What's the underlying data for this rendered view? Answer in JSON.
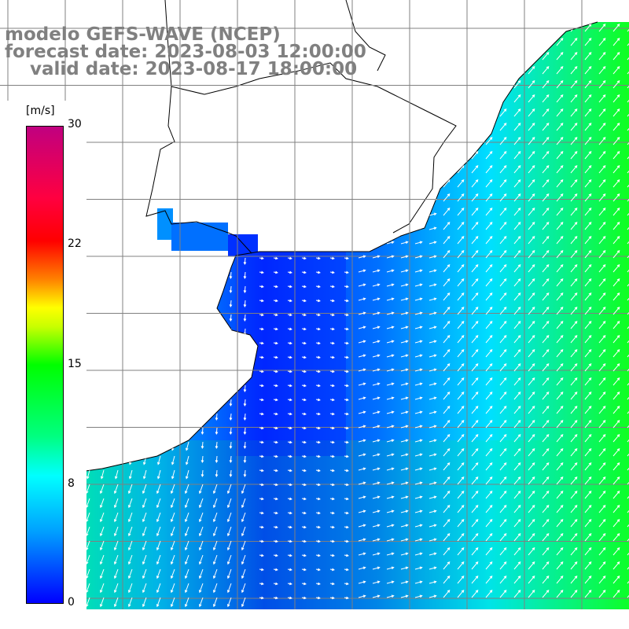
{
  "title": {
    "line1": "modelo GEFS-WAVE (NCEP)",
    "line2": "forecast date: 2023-08-03 12:00:00",
    "line3": "    valid date: 2023-08-17 18:00:00"
  },
  "legend": {
    "units": "[m/s]",
    "ticks": [
      "30",
      "22",
      "15",
      "8",
      "0"
    ],
    "tick_values": [
      30,
      22,
      15,
      8,
      0
    ],
    "colors": [
      "#0000ff",
      "#00a0ff",
      "#00ffff",
      "#00ff00",
      "#ffff00",
      "#ff8000",
      "#ff0000",
      "#c00080"
    ]
  },
  "map": {
    "variable": "wind speed and direction",
    "land_color": "#ffffff",
    "coastline_color": "#000000",
    "grid_color": "#808080",
    "arrow_color": "#ffffff"
  }
}
